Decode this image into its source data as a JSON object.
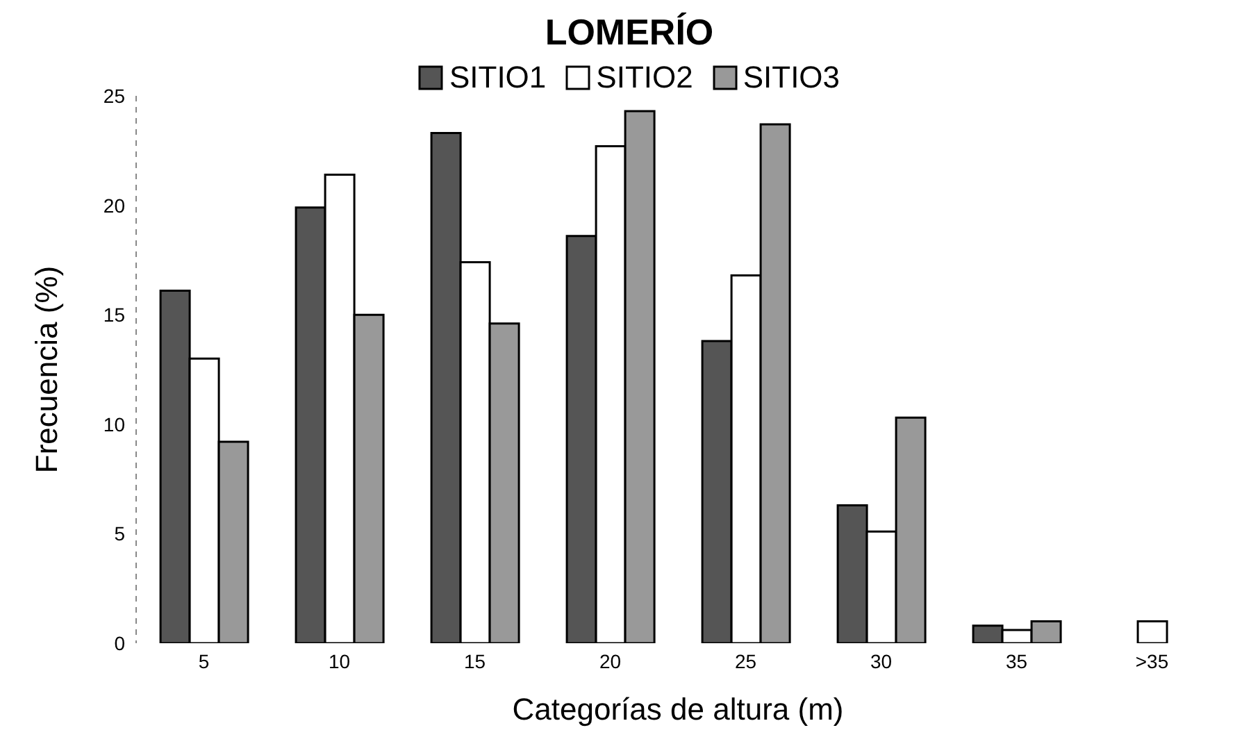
{
  "chart_data": {
    "type": "bar",
    "title": "LOMERÍO",
    "xlabel": "Categorías de altura (m)",
    "ylabel": "Frecuencia (%)",
    "categories": [
      "5",
      "10",
      "15",
      "20",
      "25",
      "30",
      "35",
      ">35"
    ],
    "series": [
      {
        "name": "SITIO1",
        "color": "#555555",
        "values": [
          16.1,
          19.9,
          23.3,
          18.6,
          13.8,
          6.3,
          0.8,
          0
        ]
      },
      {
        "name": "SITIO2",
        "color": "#ffffff",
        "values": [
          13.0,
          21.4,
          17.4,
          22.7,
          16.8,
          5.1,
          0.6,
          1.0
        ]
      },
      {
        "name": "SITIO3",
        "color": "#999999",
        "values": [
          9.2,
          15.0,
          14.6,
          24.3,
          23.7,
          10.3,
          1.0,
          0
        ]
      }
    ],
    "ylim": [
      0,
      25
    ],
    "yticks": [
      0,
      5,
      10,
      15,
      20,
      25
    ],
    "grid": false,
    "legend": "top"
  }
}
